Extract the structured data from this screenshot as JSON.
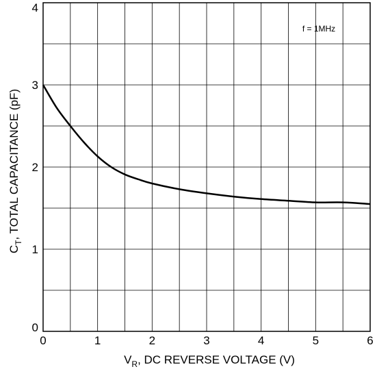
{
  "chart_data": {
    "type": "line",
    "title": "",
    "annotation": "f = 1MHz",
    "xlabel": {
      "main": "V",
      "sub": "R",
      "rest": ", DC REVERSE VOLTAGE (V)"
    },
    "ylabel": {
      "main": "C",
      "sub": "T",
      "rest": ", TOTAL CAPACITANCE (pF)"
    },
    "xlim": [
      0,
      6
    ],
    "ylim": [
      0,
      4
    ],
    "x_ticks": [
      0,
      1,
      2,
      3,
      4,
      5,
      6
    ],
    "y_ticks": [
      0,
      1,
      2,
      3,
      4
    ],
    "x_tick_labels": [
      "0",
      "1",
      "2",
      "3",
      "4",
      "5",
      "6"
    ],
    "y_tick_labels": [
      "0",
      "1",
      "2",
      "3",
      "4"
    ],
    "x_grid": [
      0.5,
      1,
      1.5,
      2,
      2.5,
      3,
      3.5,
      4,
      4.5,
      5,
      5.5,
      6
    ],
    "y_grid": [
      0.5,
      1,
      1.5,
      2,
      2.5,
      3,
      3.5
    ],
    "grid": true,
    "series": [
      {
        "color": "#000000",
        "x": [
          0,
          0.25,
          0.5,
          0.75,
          1.0,
          1.25,
          1.5,
          1.75,
          2.0,
          2.5,
          3.0,
          3.5,
          4.0,
          4.5,
          5.0,
          5.5,
          6.0
        ],
        "y": [
          3.0,
          2.72,
          2.5,
          2.3,
          2.13,
          2.0,
          1.91,
          1.85,
          1.8,
          1.73,
          1.68,
          1.64,
          1.61,
          1.59,
          1.57,
          1.57,
          1.55
        ]
      }
    ]
  }
}
